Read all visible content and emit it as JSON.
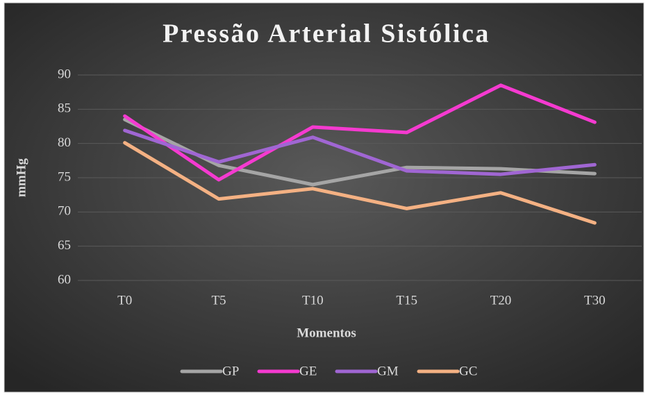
{
  "chart_data": {
    "type": "line",
    "title": "Pressão Arterial Sistólica",
    "x_label": "Momentos",
    "y_label": "mmHg",
    "categories": [
      "T0",
      "T5",
      "T10",
      "T15",
      "T20",
      "T30"
    ],
    "series": [
      {
        "name": "GP",
        "color": "#a5a5a5",
        "values": [
          83.5,
          76.8,
          74.0,
          76.5,
          76.3,
          75.6
        ]
      },
      {
        "name": "GE",
        "color": "#f53ad0",
        "values": [
          84.0,
          74.7,
          82.4,
          81.6,
          88.5,
          83.1
        ]
      },
      {
        "name": "GM",
        "color": "#a066d3",
        "values": [
          81.9,
          77.3,
          80.9,
          76.0,
          75.5,
          76.9
        ]
      },
      {
        "name": "GC",
        "color": "#f4b183",
        "values": [
          80.1,
          71.9,
          73.4,
          70.5,
          72.8,
          68.4
        ]
      }
    ],
    "ylim": [
      60,
      90
    ],
    "yticks": [
      60,
      65,
      70,
      75,
      80,
      85,
      90
    ],
    "grid": true,
    "legend": "bottom"
  }
}
